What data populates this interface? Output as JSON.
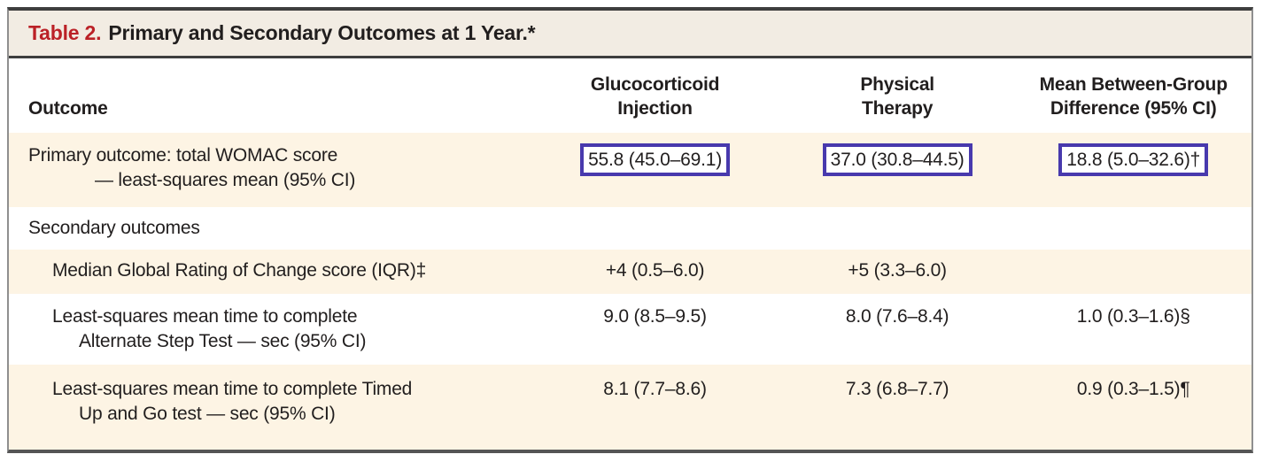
{
  "table": {
    "title_label": "Table 2.",
    "title_text": "Primary and Secondary Outcomes at 1 Year.*",
    "columns": {
      "outcome": "Outcome",
      "group1_line1": "Glucocorticoid",
      "group1_line2": "Injection",
      "group2_line1": "Physical",
      "group2_line2": "Therapy",
      "diff_line1": "Mean Between-Group",
      "diff_line2": "Difference (95% CI)"
    },
    "rows": [
      {
        "label_line1": "Primary outcome: total WOMAC score",
        "label_line2": "— least-squares mean (95% CI)",
        "glucocorticoid": "55.8 (45.0–69.1)",
        "physical_therapy": "37.0 (30.8–44.5)",
        "difference": "18.8 (5.0–32.6)†",
        "highlighted": true
      },
      {
        "label_line1": "Secondary outcomes",
        "section_header": true
      },
      {
        "label_line1": "Median Global Rating of Change score (IQR)‡",
        "glucocorticoid": "+4 (0.5–6.0)",
        "physical_therapy": "+5 (3.3–6.0)",
        "difference": ""
      },
      {
        "label_line1": "Least-squares mean time to complete",
        "label_line2": "Alternate Step Test — sec (95% CI)",
        "glucocorticoid": "9.0 (8.5–9.5)",
        "physical_therapy": "8.0 (7.6–8.4)",
        "difference": "1.0 (0.3–1.6)§"
      },
      {
        "label_line1": "Least-squares mean time to complete Timed",
        "label_line2": "Up and Go test — sec (95% CI)",
        "glucocorticoid": "8.1 (7.7–8.6)",
        "physical_therapy": "7.3 (6.8–7.7)",
        "difference": "0.9 (0.3–1.5)¶"
      }
    ],
    "colors": {
      "accent_red": "#bb2127",
      "title_band_bg": "#f2ece3",
      "row_stripe_bg": "#fdf4e4",
      "highlight_box_border": "#4839ad",
      "rule_dark": "#3e3e3e"
    }
  }
}
